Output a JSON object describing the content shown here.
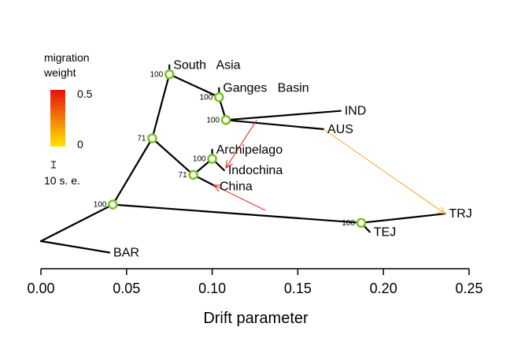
{
  "chart_data": {
    "type": "tree",
    "xlabel": "Drift parameter",
    "xlim": [
      0,
      0.25
    ],
    "x_ticks": [
      "0.00",
      "0.05",
      "0.10",
      "0.15",
      "0.20",
      "0.25"
    ],
    "nodes": [
      {
        "id": "root",
        "x": 0.0,
        "y": 0.0
      },
      {
        "id": "n1",
        "x": 0.042,
        "y": 1.6,
        "support": "100"
      },
      {
        "id": "n2",
        "x": 0.065,
        "y": 4.5,
        "support": "71"
      },
      {
        "id": "n3",
        "x": 0.075,
        "y": 7.3,
        "support": "100"
      },
      {
        "id": "n4",
        "x": 0.104,
        "y": 6.3,
        "support": "100"
      },
      {
        "id": "n5",
        "x": 0.108,
        "y": 5.3,
        "support": "100"
      },
      {
        "id": "n6",
        "x": 0.089,
        "y": 2.9,
        "support": "71"
      },
      {
        "id": "n7",
        "x": 0.1,
        "y": 3.6,
        "support": "100"
      },
      {
        "id": "n8",
        "x": 0.187,
        "y": 0.8,
        "support": "100"
      }
    ],
    "leaves": [
      {
        "id": "BAR",
        "label": "BAR",
        "x": 0.04,
        "y": -0.5,
        "parent": "root"
      },
      {
        "id": "SouthAsia",
        "label": "South   Asia",
        "x": 0.075,
        "y": 7.7,
        "parent": "n3"
      },
      {
        "id": "GangesBasin",
        "label": "Ganges   Basin",
        "x": 0.104,
        "y": 6.7,
        "parent": "n4"
      },
      {
        "id": "IND",
        "label": "IND",
        "x": 0.175,
        "y": 5.7,
        "parent": "n5"
      },
      {
        "id": "AUS",
        "label": "AUS",
        "x": 0.165,
        "y": 4.9,
        "parent": "n5"
      },
      {
        "id": "Archipelago",
        "label": "Archipelago",
        "x": 0.1,
        "y": 4.0,
        "parent": "n7"
      },
      {
        "id": "Indochina",
        "label": "Indochina",
        "x": 0.107,
        "y": 3.1,
        "parent": "n7"
      },
      {
        "id": "China",
        "label": "China",
        "x": 0.102,
        "y": 2.4,
        "parent": "n6"
      },
      {
        "id": "TRJ",
        "label": "TRJ",
        "x": 0.236,
        "y": 1.2,
        "parent": "n8"
      },
      {
        "id": "TEJ",
        "label": "TEJ",
        "x": 0.192,
        "y": 0.4,
        "parent": "n8"
      }
    ],
    "edges": [
      {
        "from": "root",
        "to": "n1"
      },
      {
        "from": "root",
        "to": "BAR"
      },
      {
        "from": "n1",
        "to": "n2"
      },
      {
        "from": "n1",
        "to": "n8"
      },
      {
        "from": "n2",
        "to": "n3"
      },
      {
        "from": "n2",
        "to": "n6"
      },
      {
        "from": "n3",
        "to": "SouthAsia"
      },
      {
        "from": "n3",
        "to": "n4"
      },
      {
        "from": "n4",
        "to": "GangesBasin"
      },
      {
        "from": "n4",
        "to": "n5"
      },
      {
        "from": "n5",
        "to": "IND"
      },
      {
        "from": "n5",
        "to": "AUS"
      },
      {
        "from": "n6",
        "to": "n7"
      },
      {
        "from": "n6",
        "to": "China"
      },
      {
        "from": "n7",
        "to": "Archipelago"
      },
      {
        "from": "n7",
        "to": "Indochina"
      },
      {
        "from": "n8",
        "to": "TRJ"
      },
      {
        "from": "n8",
        "to": "TEJ"
      }
    ],
    "migrations": [
      {
        "from": [
          0.126,
          5.3
        ],
        "to": [
          0.108,
          3.2
        ],
        "weight": 0.5,
        "color": "#e8200a"
      },
      {
        "from": [
          0.131,
          1.35
        ],
        "to": [
          0.101,
          2.45
        ],
        "weight": 0.5,
        "color": "#e8200a"
      },
      {
        "from": [
          0.165,
          4.9
        ],
        "to": [
          0.236,
          1.2
        ],
        "weight": 0.12,
        "color": "#f2a81a"
      }
    ],
    "legend": {
      "title_line1": "migration",
      "title_line2": "weight",
      "max_label": "0.5",
      "min_label": "0",
      "scale_label": "10 s. e.",
      "gradient_top": "#e8100e",
      "gradient_bottom": "#ffe600"
    },
    "colors": {
      "node_ring": "#7dc31f",
      "tree_line": "#000000"
    }
  }
}
